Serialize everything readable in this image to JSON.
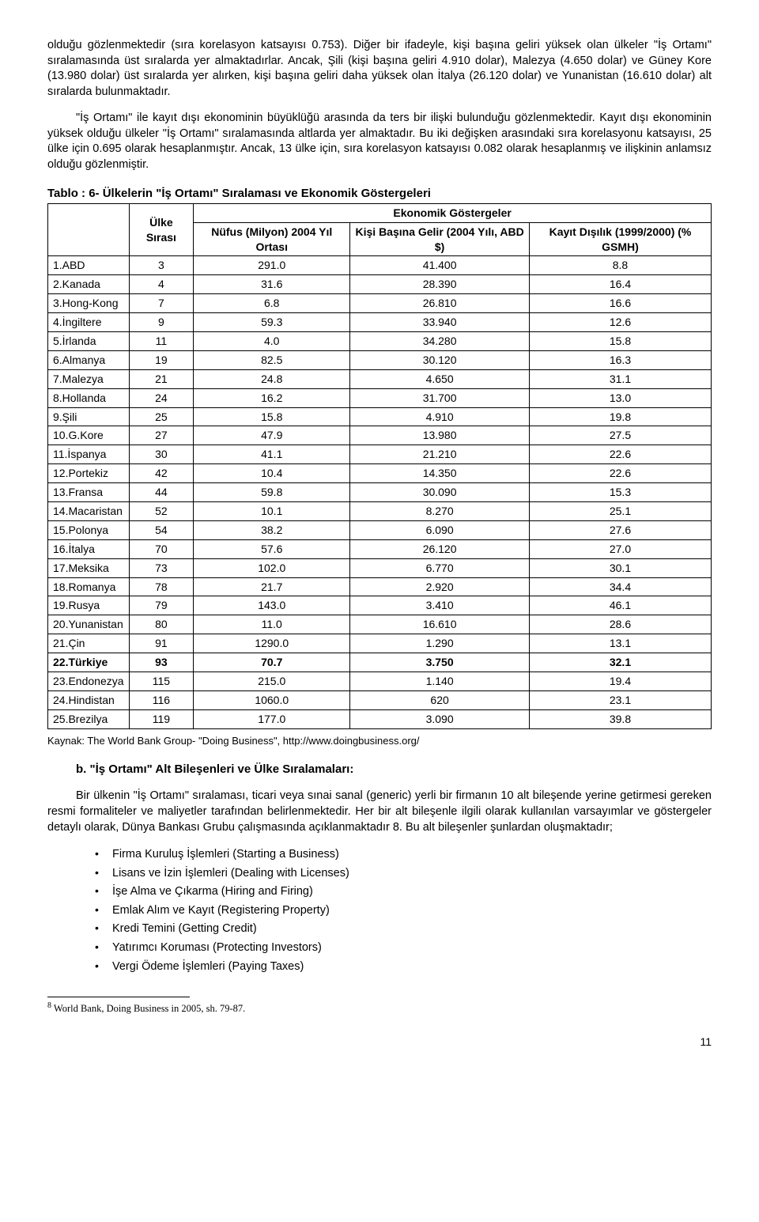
{
  "paragraphs": {
    "p1": "olduğu gözlenmektedir (sıra korelasyon katsayısı 0.753). Diğer bir ifadeyle, kişi başına geliri yüksek olan ülkeler \"İş Ortamı\" sıralamasında üst sıralarda yer almaktadırlar. Ancak, Şili (kişi başına geliri 4.910 dolar), Malezya (4.650 dolar) ve Güney Kore (13.980 dolar) üst sıralarda yer alırken, kişi başına geliri daha yüksek olan İtalya (26.120 dolar) ve Yunanistan (16.610 dolar) alt sıralarda bulunmaktadır.",
    "p2": "\"İş Ortamı\" ile kayıt dışı ekonominin büyüklüğü arasında da ters bir ilişki bulunduğu gözlenmektedir. Kayıt dışı ekonominin yüksek olduğu ülkeler \"İş Ortamı\" sıralamasında altlarda yer almaktadır. Bu iki değişken arasındaki sıra korelasyonu katsayısı, 25 ülke için 0.695 olarak hesaplanmıştır. Ancak, 13 ülke için, sıra korelasyon katsayısı 0.082 olarak hesaplanmış ve ilişkinin anlamsız olduğu gözlenmiştir.",
    "p3": "Bir ülkenin \"İş Ortamı\" sıralaması, ticari veya sınai sanal (generic) yerli bir firmanın 10 alt bileşende yerine getirmesi gereken resmi formaliteler ve maliyetler tarafından belirlenmektedir. Her bir alt bileşenle ilgili olarak kullanılan varsayımlar ve göstergeler detaylı olarak, Dünya Bankası Grubu çalışmasında açıklanmaktadır 8. Bu alt bileşenler şunlardan oluşmaktadır;"
  },
  "table": {
    "title": "Tablo : 6- Ülkelerin \"İş Ortamı\" Sıralaması ve Ekonomik Göstergeleri",
    "superheader": "Ekonomik Göstergeler",
    "headers": {
      "c0": "",
      "c1": "Ülke Sırası",
      "c2": "Nüfus (Milyon) 2004 Yıl Ortası",
      "c3": "Kişi Başına Gelir (2004 Yılı, ABD $)",
      "c4": "Kayıt Dışılık (1999/2000) (% GSMH)"
    },
    "rows": [
      {
        "country": "1.ABD",
        "rank": "3",
        "pop": "291.0",
        "gni": "41.400",
        "inf": "8.8",
        "bold": false
      },
      {
        "country": "2.Kanada",
        "rank": "4",
        "pop": "31.6",
        "gni": "28.390",
        "inf": "16.4",
        "bold": false
      },
      {
        "country": "3.Hong-Kong",
        "rank": "7",
        "pop": "6.8",
        "gni": "26.810",
        "inf": "16.6",
        "bold": false
      },
      {
        "country": "4.İngiltere",
        "rank": "9",
        "pop": "59.3",
        "gni": "33.940",
        "inf": "12.6",
        "bold": false
      },
      {
        "country": "5.İrlanda",
        "rank": "11",
        "pop": "4.0",
        "gni": "34.280",
        "inf": "15.8",
        "bold": false
      },
      {
        "country": "6.Almanya",
        "rank": "19",
        "pop": "82.5",
        "gni": "30.120",
        "inf": "16.3",
        "bold": false
      },
      {
        "country": "7.Malezya",
        "rank": "21",
        "pop": "24.8",
        "gni": "4.650",
        "inf": "31.1",
        "bold": false
      },
      {
        "country": "8.Hollanda",
        "rank": "24",
        "pop": "16.2",
        "gni": "31.700",
        "inf": "13.0",
        "bold": false
      },
      {
        "country": "9.Şili",
        "rank": "25",
        "pop": "15.8",
        "gni": "4.910",
        "inf": "19.8",
        "bold": false
      },
      {
        "country": "10.G.Kore",
        "rank": "27",
        "pop": "47.9",
        "gni": "13.980",
        "inf": "27.5",
        "bold": false
      },
      {
        "country": "11.İspanya",
        "rank": "30",
        "pop": "41.1",
        "gni": "21.210",
        "inf": "22.6",
        "bold": false
      },
      {
        "country": "12.Portekiz",
        "rank": "42",
        "pop": "10.4",
        "gni": "14.350",
        "inf": "22.6",
        "bold": false
      },
      {
        "country": "13.Fransa",
        "rank": "44",
        "pop": "59.8",
        "gni": "30.090",
        "inf": "15.3",
        "bold": false
      },
      {
        "country": "14.Macaristan",
        "rank": "52",
        "pop": "10.1",
        "gni": "8.270",
        "inf": "25.1",
        "bold": false
      },
      {
        "country": "15.Polonya",
        "rank": "54",
        "pop": "38.2",
        "gni": "6.090",
        "inf": "27.6",
        "bold": false
      },
      {
        "country": "16.İtalya",
        "rank": "70",
        "pop": "57.6",
        "gni": "26.120",
        "inf": "27.0",
        "bold": false
      },
      {
        "country": "17.Meksika",
        "rank": "73",
        "pop": "102.0",
        "gni": "6.770",
        "inf": "30.1",
        "bold": false
      },
      {
        "country": "18.Romanya",
        "rank": "78",
        "pop": "21.7",
        "gni": "2.920",
        "inf": "34.4",
        "bold": false
      },
      {
        "country": "19.Rusya",
        "rank": "79",
        "pop": "143.0",
        "gni": "3.410",
        "inf": "46.1",
        "bold": false
      },
      {
        "country": "20.Yunanistan",
        "rank": "80",
        "pop": "11.0",
        "gni": "16.610",
        "inf": "28.6",
        "bold": false
      },
      {
        "country": "21.Çin",
        "rank": "91",
        "pop": "1290.0",
        "gni": "1.290",
        "inf": "13.1",
        "bold": false
      },
      {
        "country": "22.Türkiye",
        "rank": "93",
        "pop": "70.7",
        "gni": "3.750",
        "inf": "32.1",
        "bold": true
      },
      {
        "country": "23.Endonezya",
        "rank": "115",
        "pop": "215.0",
        "gni": "1.140",
        "inf": "19.4",
        "bold": false
      },
      {
        "country": "24.Hindistan",
        "rank": "116",
        "pop": "1060.0",
        "gni": "620",
        "inf": "23.1",
        "bold": false
      },
      {
        "country": "25.Brezilya",
        "rank": "119",
        "pop": "177.0",
        "gni": "3.090",
        "inf": "39.8",
        "bold": false
      }
    ],
    "source": "Kaynak: The World Bank Group- \"Doing Business\", http://www.doingbusiness.org/"
  },
  "sectionB": "b. \"İş Ortamı\" Alt Bileşenleri ve Ülke Sıralamaları:",
  "bullets": [
    "Firma Kuruluş İşlemleri (Starting a Business)",
    "Lisans ve İzin İşlemleri (Dealing with Licenses)",
    "İşe Alma ve Çıkarma (Hiring and Firing)",
    "Emlak Alım ve Kayıt (Registering Property)",
    "Kredi Temini (Getting Credit)",
    "Yatırımcı Koruması (Protecting Investors)",
    "Vergi Ödeme İşlemleri (Paying Taxes)"
  ],
  "footnote": {
    "num": "8",
    "text": " World Bank, Doing Business in 2005, sh. 79-87."
  },
  "pageNumber": "11"
}
